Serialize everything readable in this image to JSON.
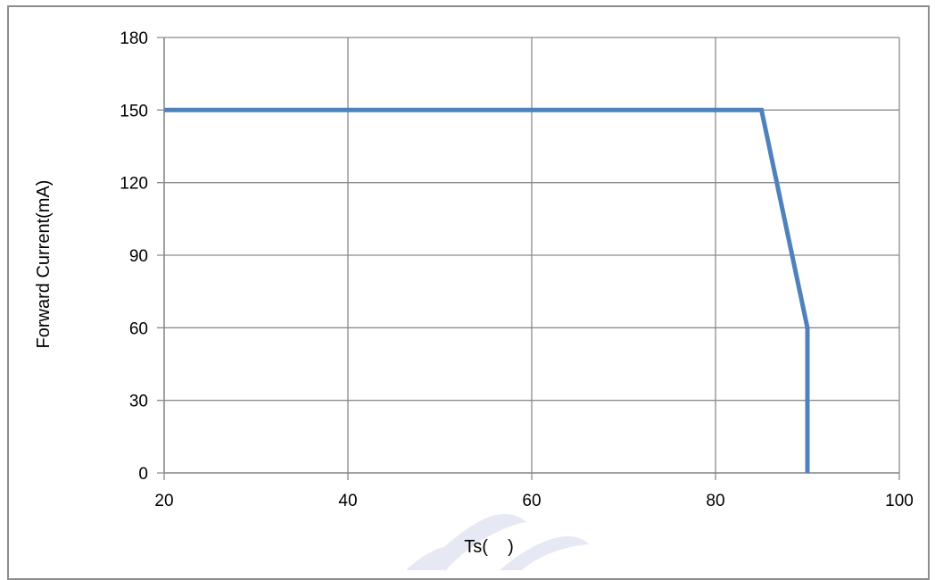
{
  "chart_data": {
    "type": "line",
    "title": "",
    "xlabel": "Ts(    )",
    "ylabel": "Forward Current(mA)",
    "xlim": [
      20,
      100
    ],
    "ylim": [
      0,
      180
    ],
    "x_ticks": [
      "20",
      "40",
      "60",
      "80",
      "100"
    ],
    "y_ticks": [
      "0",
      "30",
      "60",
      "90",
      "120",
      "150",
      "180"
    ],
    "grid": true,
    "legend": "none",
    "series": [
      {
        "color": "#4f81bd",
        "x": [
          20,
          85,
          90,
          90
        ],
        "y": [
          150,
          150,
          60,
          0
        ]
      }
    ]
  },
  "colors": {
    "series": "#4f81bd",
    "grid": "#8c8c8c",
    "frame": "#8c8c8c",
    "watermark": "#e6e8f3"
  }
}
